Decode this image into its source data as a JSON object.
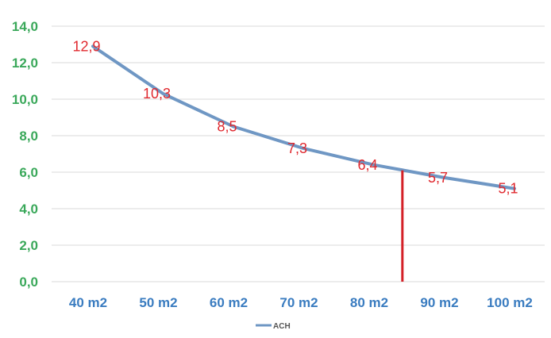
{
  "chart_data": {
    "type": "line",
    "title": "",
    "xlabel": "",
    "ylabel": "",
    "categories": [
      "40 m2",
      "50 m2",
      "60 m2",
      "70 m2",
      "80 m2",
      "90 m2",
      "100 m2"
    ],
    "series": [
      {
        "name": "ACH",
        "values": [
          12.9,
          10.3,
          8.5,
          7.3,
          6.4,
          5.7,
          5.1
        ],
        "color": "#6f97c4"
      }
    ],
    "data_labels": [
      "12,9",
      "10,3",
      "8,5",
      "7,3",
      "6,4",
      "5,7",
      "5,1"
    ],
    "ylim": [
      0,
      14
    ],
    "yticks": [
      0,
      2,
      4,
      6,
      8,
      10,
      12,
      14
    ],
    "ytick_labels": [
      "0,0",
      "2,0",
      "4,0",
      "6,0",
      "8,0",
      "10,0",
      "12,0",
      "14,0"
    ],
    "grid": true,
    "legend": {
      "position": "bottom",
      "entries": [
        "ACH"
      ]
    },
    "annotation": {
      "type": "vertical-line",
      "x_category_position": 4.45,
      "y_top": 6.1,
      "color": "#d42027"
    },
    "colors": {
      "ytick": "#3aa85a",
      "xtick": "#3a7cc0",
      "data_label": "#e0282e",
      "grid": "#e6e6e6"
    }
  }
}
